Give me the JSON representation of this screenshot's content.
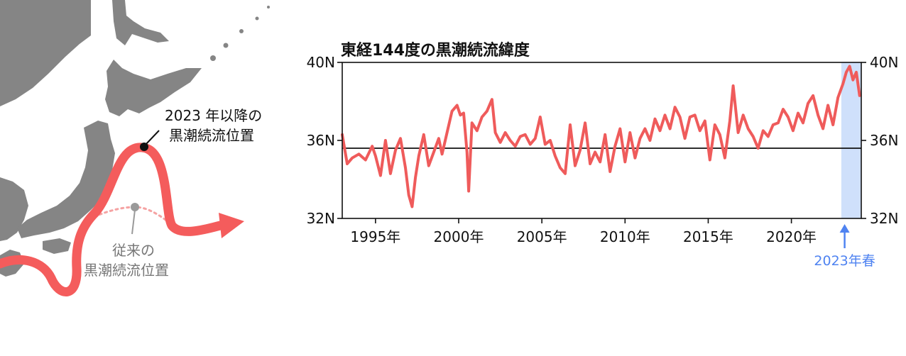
{
  "map": {
    "current_label": [
      "2023 年以降の",
      "黒潮続流位置"
    ],
    "previous_label": [
      "従来の",
      "黒潮続流位置"
    ]
  },
  "chart_data": {
    "type": "line",
    "title": "東経144度の黒潮続流緯度",
    "ylabel": "",
    "xlabel": "",
    "ylim": [
      32,
      40
    ],
    "y_ticks": [
      "32N",
      "36N",
      "40N"
    ],
    "x_ticks": [
      "1995年",
      "2000年",
      "2005年",
      "2010年",
      "2015年",
      "2020年"
    ],
    "x_tick_years": [
      1995,
      2000,
      2005,
      2010,
      2015,
      2020
    ],
    "xlim": [
      1993.0,
      2024.2
    ],
    "reference_line": 35.6,
    "highlight": {
      "label": "2023年春",
      "from": 2023.0,
      "to": 2024.2,
      "color": "#cfe0fb",
      "arrow_color": "#4f83f1"
    },
    "line_color": "#ef5b5b",
    "series": [
      {
        "x": [
          1993.0,
          1993.3,
          1993.6,
          1994.0,
          1994.4,
          1994.8,
          1995.0,
          1995.3,
          1995.6,
          1995.9,
          1996.2,
          1996.5,
          1996.8,
          1997.0,
          1997.2,
          1997.4,
          1997.6,
          1997.9,
          1998.2,
          1998.5,
          1998.8,
          1999.0,
          1999.3,
          1999.6,
          1999.9,
          2000.1,
          2000.3,
          2000.5,
          2000.6,
          2000.8,
          2001.1,
          2001.4,
          2001.7,
          2002.0,
          2002.2,
          2002.5,
          2002.8,
          2003.1,
          2003.4,
          2003.7,
          2004.0,
          2004.3,
          2004.6,
          2004.9,
          2005.2,
          2005.5,
          2005.8,
          2006.1,
          2006.4,
          2006.7,
          2007.0,
          2007.3,
          2007.6,
          2007.9,
          2008.2,
          2008.5,
          2008.8,
          2009.1,
          2009.4,
          2009.7,
          2010.0,
          2010.3,
          2010.6,
          2010.9,
          2011.2,
          2011.5,
          2011.8,
          2012.1,
          2012.4,
          2012.7,
          2013.0,
          2013.3,
          2013.6,
          2013.9,
          2014.2,
          2014.5,
          2014.8,
          2015.1,
          2015.4,
          2015.7,
          2016.0,
          2016.3,
          2016.5,
          2016.8,
          2017.1,
          2017.4,
          2017.7,
          2018.0,
          2018.3,
          2018.6,
          2018.9,
          2019.2,
          2019.5,
          2019.8,
          2020.1,
          2020.4,
          2020.7,
          2021.0,
          2021.3,
          2021.6,
          2021.9,
          2022.2,
          2022.5,
          2022.8,
          2023.1,
          2023.3,
          2023.5,
          2023.7,
          2023.9,
          2024.1
        ],
        "values": [
          36.3,
          34.8,
          35.1,
          35.3,
          35.0,
          35.7,
          35.2,
          34.2,
          36.0,
          34.3,
          35.5,
          36.1,
          34.6,
          33.2,
          32.6,
          34.1,
          35.2,
          36.3,
          34.7,
          35.4,
          36.1,
          35.3,
          36.4,
          37.5,
          37.8,
          37.3,
          37.4,
          35.4,
          33.4,
          36.9,
          36.5,
          37.2,
          37.5,
          38.1,
          36.4,
          35.9,
          36.4,
          36.0,
          35.7,
          36.2,
          36.3,
          35.8,
          36.1,
          37.2,
          35.8,
          36.0,
          35.2,
          34.6,
          34.3,
          36.8,
          34.7,
          35.5,
          36.9,
          34.8,
          35.4,
          34.9,
          36.3,
          34.4,
          35.7,
          36.6,
          34.9,
          36.4,
          35.1,
          36.1,
          36.6,
          36.0,
          37.1,
          36.5,
          37.3,
          36.6,
          37.7,
          37.2,
          36.1,
          37.2,
          37.3,
          36.5,
          37.0,
          35.0,
          36.8,
          36.3,
          35.1,
          37.0,
          38.8,
          36.4,
          37.3,
          36.6,
          36.2,
          35.6,
          36.5,
          36.2,
          36.8,
          36.9,
          37.6,
          37.2,
          36.5,
          37.4,
          36.9,
          37.9,
          38.3,
          37.3,
          36.6,
          37.8,
          36.8,
          38.2,
          38.9,
          39.5,
          39.8,
          39.1,
          39.5,
          38.3
        ]
      }
    ]
  }
}
